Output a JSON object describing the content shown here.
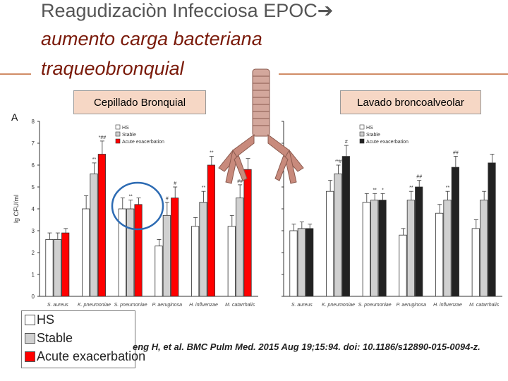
{
  "slide": {
    "title_line1": "Reagudizaciòn Infecciosa EPOC",
    "title_arrow": "➔",
    "title_line2": "aumento carga bacteriana",
    "title_line3": "traqueobronquial",
    "tag_left": "Cepillado Bronquial",
    "tag_right": "Lavado broncoalveolar",
    "citation": "eng H, et al. BMC Pulm Med. 2015 Aug 19;15:94. doi: 10.1186/s12890-015-0094-z.",
    "big_legend": [
      "HS",
      "Stable",
      "Acute exacerbation"
    ],
    "colors": {
      "accent": "#d08c66",
      "tag_bg": "#f6d7c5",
      "title_red": "#7a1a0a",
      "circle": "#2d6bb3"
    }
  },
  "chart_data": [
    {
      "type": "bar",
      "panel_label": "A",
      "ylabel": "lg CFU/ml",
      "ylim": [
        0,
        8
      ],
      "yticks": [
        0,
        1,
        2,
        3,
        4,
        5,
        6,
        7,
        8
      ],
      "categories": [
        "S. aureus",
        "K. pneumoniae",
        "S. pneumoniae",
        "P. aeruginosa",
        "H. influenzae",
        "M. catarrhalis"
      ],
      "series": [
        {
          "name": "HS",
          "color": "#ffffff",
          "values": [
            2.6,
            4.0,
            4.0,
            2.3,
            3.2,
            3.2
          ],
          "errors": [
            0.3,
            0.6,
            0.5,
            0.3,
            0.4,
            0.5
          ]
        },
        {
          "name": "Stable",
          "color": "#d0d0d0",
          "values": [
            2.6,
            5.6,
            4.0,
            3.7,
            4.3,
            4.5
          ],
          "errors": [
            0.3,
            0.5,
            0.4,
            0.6,
            0.5,
            0.6
          ]
        },
        {
          "name": "Acute exacerbation",
          "color": "#ff0000",
          "values": [
            2.9,
            6.5,
            4.2,
            4.5,
            6.0,
            5.8
          ],
          "errors": [
            0.2,
            0.6,
            0.3,
            0.5,
            0.4,
            0.5
          ]
        }
      ],
      "annotations": [
        "**",
        "*##",
        "**",
        "",
        "#",
        "#",
        "**",
        "**",
        "##"
      ],
      "legend": [
        "HS",
        "Stable",
        "Acute exacerbation"
      ]
    },
    {
      "type": "bar",
      "ylim": [
        0,
        8
      ],
      "categories": [
        "S. aureus",
        "K. pneumoniae",
        "S. pneumoniae",
        "P. aeruginosa",
        "H. influenzae",
        "M. catarrhalis"
      ],
      "series": [
        {
          "name": "HS",
          "color": "#ffffff",
          "values": [
            3.0,
            4.8,
            4.3,
            2.8,
            3.8,
            3.1
          ],
          "errors": [
            0.3,
            0.5,
            0.4,
            0.3,
            0.4,
            0.4
          ]
        },
        {
          "name": "Stable",
          "color": "#d0d0d0",
          "values": [
            3.1,
            5.6,
            4.4,
            4.4,
            4.4,
            4.4
          ],
          "errors": [
            0.3,
            0.4,
            0.3,
            0.4,
            0.4,
            0.4
          ]
        },
        {
          "name": "Acute exacerbation",
          "color": "#222222",
          "values": [
            3.1,
            6.4,
            4.4,
            5.0,
            5.9,
            6.1
          ],
          "errors": [
            0.2,
            0.5,
            0.3,
            0.3,
            0.5,
            0.4
          ]
        }
      ],
      "annotations": [
        "**#",
        "#",
        "**",
        "*",
        "**",
        "##",
        "**",
        "##"
      ],
      "legend": [
        "HS",
        "Stable",
        "Acute exacerbation"
      ]
    }
  ]
}
